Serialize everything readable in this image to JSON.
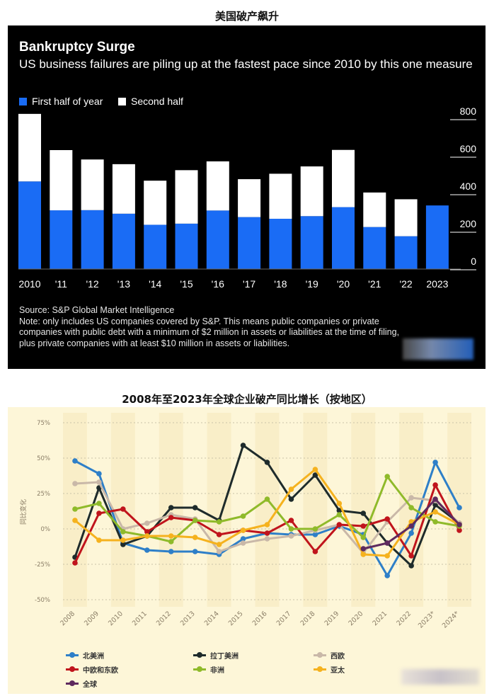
{
  "headings": {
    "top": "美国破产飙升",
    "bottom": "2008年至2023年全球企业破产同比增长（按地区）"
  },
  "chart_data": [
    {
      "type": "bar",
      "stacked": true,
      "title": "Bankruptcy Surge",
      "subtitle": "US business failures are piling up at the fastest pace since 2010 by this one measure",
      "categories": [
        "2010",
        "'11",
        "'12",
        "'13",
        "'14",
        "'15",
        "'16",
        "'17",
        "'18",
        "'19",
        "'20",
        "'21",
        "'22",
        "2023"
      ],
      "series": [
        {
          "name": "First half of year",
          "color": "#1a6cf5",
          "values": [
            467,
            313,
            314,
            295,
            236,
            242,
            312,
            277,
            268,
            282,
            330,
            224,
            175,
            339
          ]
        },
        {
          "name": "Second half",
          "color": "#ffffff",
          "values": [
            360,
            321,
            270,
            264,
            235,
            285,
            262,
            202,
            240,
            265,
            305,
            184,
            197,
            0
          ]
        }
      ],
      "ylim": [
        0,
        800
      ],
      "yticks": [
        "800",
        "600",
        "400",
        "200",
        "0"
      ],
      "ytick_values": [
        800,
        600,
        400,
        200,
        0
      ],
      "yaxis_position": "right",
      "legend_position": "top-left",
      "notes": {
        "source": "Source: S&P Global Market Intelligence",
        "note": "Note: only includes US companies covered by S&P. This means public companies or private companies with public debt with a minimum of $2 million in assets or liabilities at the time of filing, plus private companies with at least $10 million in assets or liabilities."
      }
    },
    {
      "type": "line",
      "title": "",
      "ylabel": "同比变化",
      "categories": [
        "2008",
        "2009",
        "2010",
        "2011",
        "2012",
        "2013",
        "2014",
        "2015",
        "2016",
        "2017",
        "2018",
        "2019",
        "2020",
        "2021",
        "2022",
        "2023*",
        "2024*"
      ],
      "yticks": [
        "75%",
        "50%",
        "25%",
        "0%",
        "-25%",
        "-50%"
      ],
      "ytick_values": [
        75,
        50,
        25,
        0,
        -25,
        -50
      ],
      "ylim": [
        -55,
        80
      ],
      "grid": true,
      "legend_position": "bottom",
      "series": [
        {
          "name": "北美洲",
          "color": "#2e7fc8",
          "values": [
            48,
            39,
            -10,
            -15,
            -16,
            -16,
            -18,
            -7,
            -3,
            -4,
            -4,
            2,
            -4,
            -33,
            -3,
            47,
            15
          ]
        },
        {
          "name": "拉丁美洲",
          "color": "#1e2b2b",
          "values": [
            -20,
            29,
            -11,
            -5,
            15,
            15,
            6,
            59,
            47,
            21,
            38,
            13,
            11,
            -10,
            -26,
            17,
            4
          ]
        },
        {
          "name": "西欧",
          "color": "#c9b8a8",
          "values": [
            32,
            33,
            0,
            4,
            10,
            7,
            -16,
            -10,
            -7,
            -5,
            -1,
            3,
            -17,
            5,
            22,
            20,
            4
          ]
        },
        {
          "name": "中欧和东欧",
          "color": "#c0141c",
          "values": [
            -24,
            11,
            14,
            -2,
            8,
            6,
            -4,
            -1,
            -3,
            6,
            -16,
            3,
            2,
            7,
            -19,
            31,
            -1
          ]
        },
        {
          "name": "非洲",
          "color": "#8fba2a",
          "values": [
            14,
            18,
            -2,
            -5,
            -9,
            6,
            5,
            9,
            21,
            0,
            0,
            10,
            -6,
            37,
            15,
            5,
            2
          ]
        },
        {
          "name": "亚太",
          "color": "#f5b21e",
          "values": [
            6,
            -8,
            -8,
            -5,
            -5,
            -6,
            -11,
            -1,
            3,
            28,
            42,
            18,
            -18,
            -19,
            5,
            12,
            3
          ]
        },
        {
          "name": "全球",
          "color": "#5e2a5e",
          "values": [
            null,
            null,
            null,
            null,
            null,
            null,
            null,
            null,
            null,
            null,
            null,
            null,
            -14,
            -10,
            2,
            21,
            3
          ]
        }
      ]
    }
  ]
}
